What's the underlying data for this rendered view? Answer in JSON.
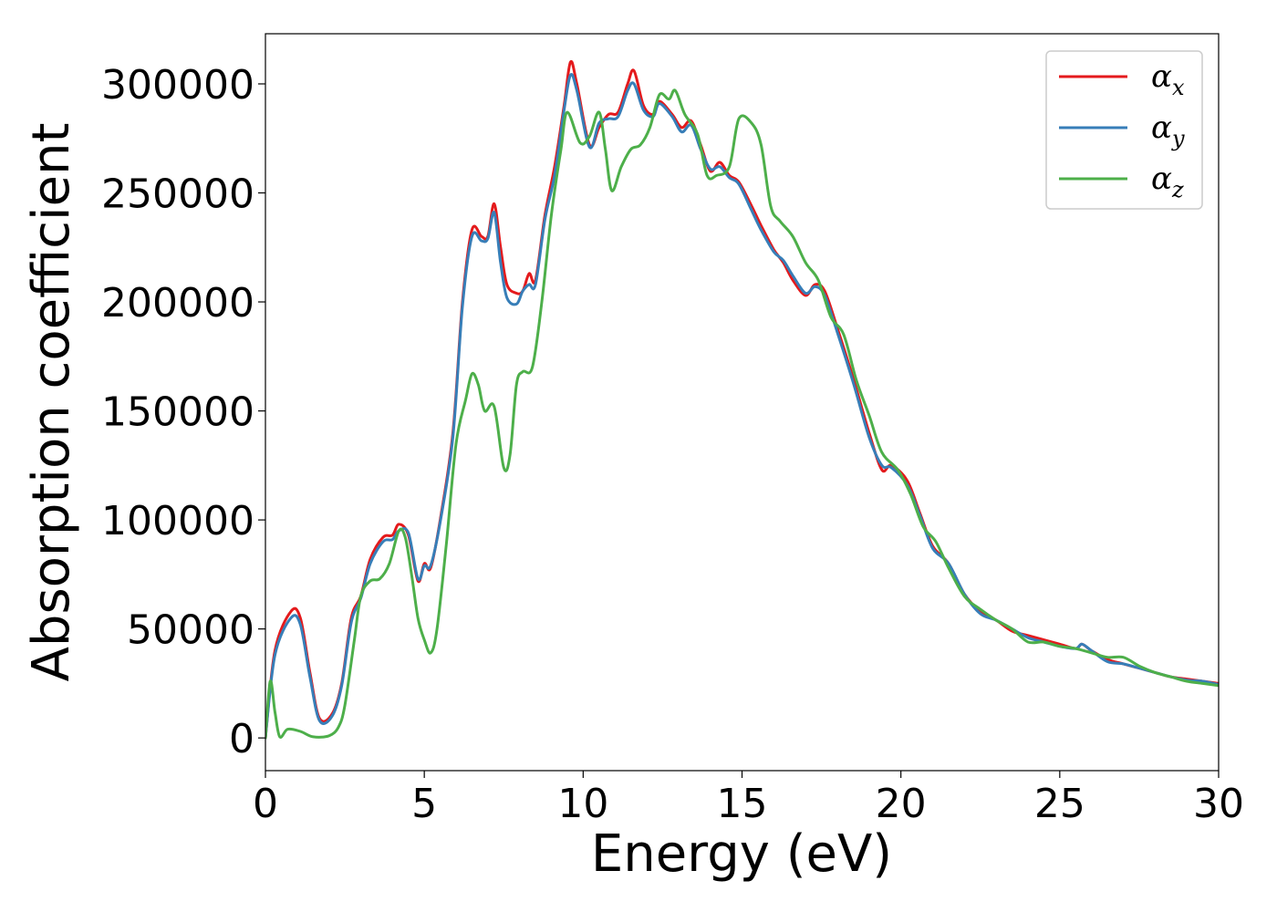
{
  "chart_data": {
    "type": "line",
    "xlabel": "Energy (eV)",
    "ylabel": "Absorption coefficient",
    "xlim": [
      0,
      30
    ],
    "ylim": [
      -15000,
      323000
    ],
    "xticks": [
      0,
      5,
      10,
      15,
      20,
      25,
      30
    ],
    "yticks": [
      0,
      50000,
      100000,
      150000,
      200000,
      250000,
      300000
    ],
    "grid": false,
    "legend_position": "top-right",
    "series": [
      {
        "name": "αx",
        "base": "α",
        "sub": "x",
        "color": "#e41a1c",
        "points": [
          [
            0,
            0
          ],
          [
            0.3,
            40000
          ],
          [
            0.8,
            58000
          ],
          [
            1.1,
            55000
          ],
          [
            1.4,
            30000
          ],
          [
            1.7,
            9000
          ],
          [
            2.1,
            11000
          ],
          [
            2.4,
            25000
          ],
          [
            2.7,
            55000
          ],
          [
            3.0,
            65000
          ],
          [
            3.3,
            82000
          ],
          [
            3.7,
            92000
          ],
          [
            4.0,
            93000
          ],
          [
            4.2,
            98000
          ],
          [
            4.5,
            93000
          ],
          [
            4.8,
            72000
          ],
          [
            5.0,
            80000
          ],
          [
            5.2,
            78000
          ],
          [
            5.5,
            100000
          ],
          [
            5.9,
            140000
          ],
          [
            6.2,
            200000
          ],
          [
            6.5,
            233000
          ],
          [
            6.8,
            230000
          ],
          [
            7.0,
            230000
          ],
          [
            7.2,
            245000
          ],
          [
            7.4,
            225000
          ],
          [
            7.6,
            208000
          ],
          [
            7.9,
            204000
          ],
          [
            8.1,
            205000
          ],
          [
            8.3,
            213000
          ],
          [
            8.5,
            210000
          ],
          [
            8.8,
            240000
          ],
          [
            9.1,
            262000
          ],
          [
            9.4,
            290000
          ],
          [
            9.6,
            310000
          ],
          [
            9.8,
            300000
          ],
          [
            10.2,
            272000
          ],
          [
            10.5,
            280000
          ],
          [
            10.8,
            286000
          ],
          [
            11.1,
            287000
          ],
          [
            11.4,
            300000
          ],
          [
            11.6,
            306000
          ],
          [
            11.9,
            290000
          ],
          [
            12.2,
            286000
          ],
          [
            12.4,
            292000
          ],
          [
            12.8,
            286000
          ],
          [
            13.1,
            280000
          ],
          [
            13.4,
            283000
          ],
          [
            13.7,
            272000
          ],
          [
            14.0,
            260000
          ],
          [
            14.3,
            264000
          ],
          [
            14.6,
            258000
          ],
          [
            14.9,
            255000
          ],
          [
            15.3,
            244000
          ],
          [
            15.6,
            235000
          ],
          [
            16.0,
            224000
          ],
          [
            16.3,
            218000
          ],
          [
            16.6,
            210000
          ],
          [
            17.0,
            203000
          ],
          [
            17.3,
            208000
          ],
          [
            17.6,
            205000
          ],
          [
            18.0,
            188000
          ],
          [
            18.5,
            165000
          ],
          [
            19.0,
            140000
          ],
          [
            19.4,
            123000
          ],
          [
            19.7,
            125000
          ],
          [
            20.2,
            118000
          ],
          [
            20.6,
            103000
          ],
          [
            21.0,
            88000
          ],
          [
            21.5,
            80000
          ],
          [
            22.0,
            66000
          ],
          [
            22.5,
            58000
          ],
          [
            23.0,
            54000
          ],
          [
            23.5,
            49000
          ],
          [
            24.0,
            47000
          ],
          [
            24.5,
            45000
          ],
          [
            25.0,
            43000
          ],
          [
            25.5,
            41000
          ],
          [
            25.7,
            43000
          ],
          [
            26.0,
            40000
          ],
          [
            26.5,
            36000
          ],
          [
            27.0,
            34000
          ],
          [
            27.5,
            32000
          ],
          [
            28.0,
            30000
          ],
          [
            28.5,
            28000
          ],
          [
            29.0,
            27000
          ],
          [
            29.5,
            26000
          ],
          [
            30.0,
            25000
          ]
        ]
      },
      {
        "name": "αy",
        "base": "α",
        "sub": "y",
        "color": "#377eb8",
        "points": [
          [
            0,
            0
          ],
          [
            0.3,
            38000
          ],
          [
            0.8,
            55000
          ],
          [
            1.1,
            52000
          ],
          [
            1.4,
            28000
          ],
          [
            1.7,
            8000
          ],
          [
            2.1,
            10000
          ],
          [
            2.4,
            24000
          ],
          [
            2.7,
            53000
          ],
          [
            3.0,
            64000
          ],
          [
            3.3,
            80000
          ],
          [
            3.7,
            90000
          ],
          [
            4.0,
            91000
          ],
          [
            4.2,
            95000
          ],
          [
            4.5,
            94000
          ],
          [
            4.8,
            73000
          ],
          [
            5.0,
            79000
          ],
          [
            5.2,
            79000
          ],
          [
            5.5,
            99000
          ],
          [
            5.9,
            138000
          ],
          [
            6.2,
            198000
          ],
          [
            6.5,
            230000
          ],
          [
            6.8,
            228000
          ],
          [
            7.0,
            229000
          ],
          [
            7.2,
            241000
          ],
          [
            7.4,
            218000
          ],
          [
            7.6,
            202000
          ],
          [
            7.9,
            199000
          ],
          [
            8.1,
            205000
          ],
          [
            8.3,
            208000
          ],
          [
            8.5,
            208000
          ],
          [
            8.8,
            238000
          ],
          [
            9.1,
            258000
          ],
          [
            9.4,
            288000
          ],
          [
            9.6,
            304000
          ],
          [
            9.8,
            297000
          ],
          [
            10.2,
            271000
          ],
          [
            10.5,
            282000
          ],
          [
            10.8,
            284000
          ],
          [
            11.1,
            285000
          ],
          [
            11.4,
            297000
          ],
          [
            11.6,
            300000
          ],
          [
            11.9,
            288000
          ],
          [
            12.2,
            285000
          ],
          [
            12.4,
            291000
          ],
          [
            12.8,
            285000
          ],
          [
            13.1,
            278000
          ],
          [
            13.4,
            281000
          ],
          [
            13.7,
            270000
          ],
          [
            14.0,
            261000
          ],
          [
            14.3,
            262000
          ],
          [
            14.6,
            257000
          ],
          [
            14.9,
            254000
          ],
          [
            15.3,
            242000
          ],
          [
            15.6,
            233000
          ],
          [
            16.0,
            223000
          ],
          [
            16.3,
            219000
          ],
          [
            16.6,
            212000
          ],
          [
            17.0,
            204000
          ],
          [
            17.3,
            207000
          ],
          [
            17.6,
            203000
          ],
          [
            18.0,
            186000
          ],
          [
            18.5,
            163000
          ],
          [
            19.0,
            138000
          ],
          [
            19.4,
            125000
          ],
          [
            19.7,
            124000
          ],
          [
            20.2,
            116000
          ],
          [
            20.6,
            102000
          ],
          [
            21.0,
            87000
          ],
          [
            21.5,
            80000
          ],
          [
            22.0,
            66000
          ],
          [
            22.5,
            57000
          ],
          [
            23.0,
            54000
          ],
          [
            23.5,
            50000
          ],
          [
            24.0,
            46000
          ],
          [
            24.5,
            44000
          ],
          [
            25.0,
            42000
          ],
          [
            25.5,
            41000
          ],
          [
            25.7,
            43000
          ],
          [
            26.0,
            40000
          ],
          [
            26.5,
            35000
          ],
          [
            27.0,
            34000
          ],
          [
            27.5,
            32000
          ],
          [
            28.0,
            30000
          ],
          [
            28.5,
            28000
          ],
          [
            29.0,
            26500
          ],
          [
            29.5,
            26000
          ],
          [
            30.0,
            24500
          ]
        ]
      },
      {
        "name": "αz",
        "base": "α",
        "sub": "z",
        "color": "#4daf4a",
        "points": [
          [
            0,
            0
          ],
          [
            0.15,
            26000
          ],
          [
            0.3,
            12000
          ],
          [
            0.45,
            500
          ],
          [
            0.7,
            4000
          ],
          [
            1.1,
            3000
          ],
          [
            1.5,
            500
          ],
          [
            2.0,
            1000
          ],
          [
            2.3,
            5000
          ],
          [
            2.5,
            15000
          ],
          [
            2.8,
            45000
          ],
          [
            3.0,
            65000
          ],
          [
            3.3,
            72000
          ],
          [
            3.6,
            73000
          ],
          [
            3.9,
            80000
          ],
          [
            4.2,
            95000
          ],
          [
            4.4,
            92000
          ],
          [
            4.6,
            75000
          ],
          [
            4.8,
            55000
          ],
          [
            5.0,
            45000
          ],
          [
            5.2,
            39000
          ],
          [
            5.4,
            50000
          ],
          [
            5.7,
            90000
          ],
          [
            6.0,
            135000
          ],
          [
            6.3,
            155000
          ],
          [
            6.5,
            167000
          ],
          [
            6.7,
            162000
          ],
          [
            6.9,
            150000
          ],
          [
            7.2,
            152000
          ],
          [
            7.5,
            124000
          ],
          [
            7.7,
            130000
          ],
          [
            7.9,
            162000
          ],
          [
            8.1,
            168000
          ],
          [
            8.4,
            170000
          ],
          [
            8.7,
            200000
          ],
          [
            9.0,
            240000
          ],
          [
            9.3,
            270000
          ],
          [
            9.5,
            287000
          ],
          [
            9.9,
            273000
          ],
          [
            10.2,
            276000
          ],
          [
            10.5,
            287000
          ],
          [
            10.7,
            270000
          ],
          [
            10.9,
            251000
          ],
          [
            11.2,
            262000
          ],
          [
            11.5,
            270000
          ],
          [
            11.8,
            272000
          ],
          [
            12.1,
            280000
          ],
          [
            12.4,
            295000
          ],
          [
            12.7,
            293000
          ],
          [
            12.9,
            297000
          ],
          [
            13.2,
            286000
          ],
          [
            13.6,
            277000
          ],
          [
            13.9,
            258000
          ],
          [
            14.2,
            258000
          ],
          [
            14.6,
            262000
          ],
          [
            14.9,
            284000
          ],
          [
            15.3,
            282000
          ],
          [
            15.6,
            272000
          ],
          [
            15.9,
            244000
          ],
          [
            16.2,
            237000
          ],
          [
            16.6,
            230000
          ],
          [
            17.0,
            218000
          ],
          [
            17.4,
            210000
          ],
          [
            17.8,
            193000
          ],
          [
            18.2,
            185000
          ],
          [
            18.6,
            164000
          ],
          [
            19.0,
            148000
          ],
          [
            19.4,
            131000
          ],
          [
            19.9,
            123000
          ],
          [
            20.3,
            112000
          ],
          [
            20.7,
            97000
          ],
          [
            21.1,
            90000
          ],
          [
            21.5,
            78000
          ],
          [
            22.0,
            65000
          ],
          [
            22.5,
            59000
          ],
          [
            23.0,
            54000
          ],
          [
            23.5,
            50000
          ],
          [
            24.0,
            44000
          ],
          [
            24.5,
            44000
          ],
          [
            25.0,
            42000
          ],
          [
            25.5,
            41000
          ],
          [
            26.0,
            39000
          ],
          [
            26.5,
            37000
          ],
          [
            27.0,
            37000
          ],
          [
            27.5,
            33000
          ],
          [
            28.0,
            30000
          ],
          [
            28.5,
            28000
          ],
          [
            29.0,
            26000
          ],
          [
            29.5,
            25000
          ],
          [
            30.0,
            24000
          ]
        ]
      }
    ]
  }
}
